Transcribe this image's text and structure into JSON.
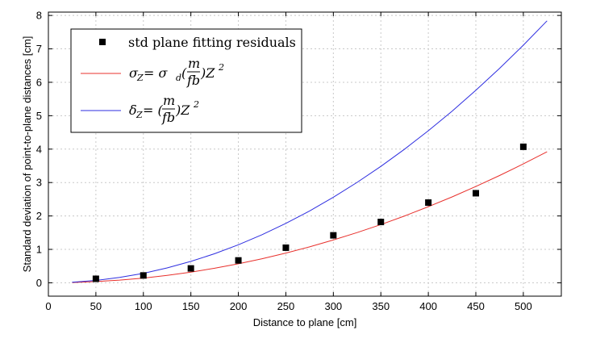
{
  "chart_data": {
    "type": "line",
    "xlabel": "Distance to plane [cm]",
    "ylabel": "Standard deviation of point-to-plane distances [cm]",
    "xlim": [
      0,
      540
    ],
    "ylim": [
      -0.4,
      8.1
    ],
    "xticks": [
      0,
      50,
      100,
      150,
      200,
      250,
      300,
      350,
      400,
      450,
      500
    ],
    "yticks": [
      0,
      1,
      2,
      3,
      4,
      5,
      6,
      7,
      8
    ],
    "grid": true,
    "legend_position": "top-left",
    "series": [
      {
        "name": "std plane fitting residuals",
        "kind": "scatter",
        "marker": "square",
        "color": "#000000",
        "x": [
          50,
          100,
          150,
          200,
          250,
          300,
          350,
          400,
          450,
          500
        ],
        "y": [
          0.12,
          0.22,
          0.43,
          0.67,
          1.05,
          1.42,
          1.82,
          2.4,
          2.68,
          4.07
        ]
      },
      {
        "name": "σZ = σd(m/fb)Z²",
        "kind": "line",
        "color": "#e8302c",
        "x": [
          25,
          50,
          75,
          100,
          125,
          150,
          175,
          200,
          225,
          250,
          275,
          300,
          325,
          350,
          375,
          400,
          425,
          450,
          475,
          500,
          525
        ],
        "y": [
          0.009,
          0.036,
          0.08,
          0.142,
          0.222,
          0.32,
          0.436,
          0.569,
          0.72,
          0.889,
          1.076,
          1.281,
          1.503,
          1.743,
          2.001,
          2.277,
          2.57,
          2.881,
          3.21,
          3.557,
          3.921
        ]
      },
      {
        "name": "δZ = (m/fb)Z²",
        "kind": "line",
        "color": "#2e2ee0",
        "x": [
          25,
          50,
          75,
          100,
          125,
          150,
          175,
          200,
          225,
          250,
          275,
          300,
          325,
          350,
          375,
          400,
          425,
          450,
          475,
          500,
          525
        ],
        "y": [
          0.018,
          0.071,
          0.16,
          0.284,
          0.444,
          0.64,
          0.871,
          1.138,
          1.44,
          1.778,
          2.151,
          2.56,
          3.004,
          3.484,
          3.999,
          4.55,
          5.137,
          5.759,
          6.417,
          7.11,
          7.838
        ]
      }
    ]
  },
  "legend": {
    "scatter_label": "std plane fitting residuals",
    "red": {
      "lhs": "σ",
      "lhs_sub": "Z",
      "eq": " = σ",
      "eq_sub": "d",
      "open": "(",
      "num": "m",
      "den": "fb",
      "close": ")Z",
      "sup": "2"
    },
    "blue": {
      "lhs": "δ",
      "lhs_sub": "Z",
      "eq": " = (",
      "num": "m",
      "den": "fb",
      "close": ")Z",
      "sup": "2"
    }
  }
}
